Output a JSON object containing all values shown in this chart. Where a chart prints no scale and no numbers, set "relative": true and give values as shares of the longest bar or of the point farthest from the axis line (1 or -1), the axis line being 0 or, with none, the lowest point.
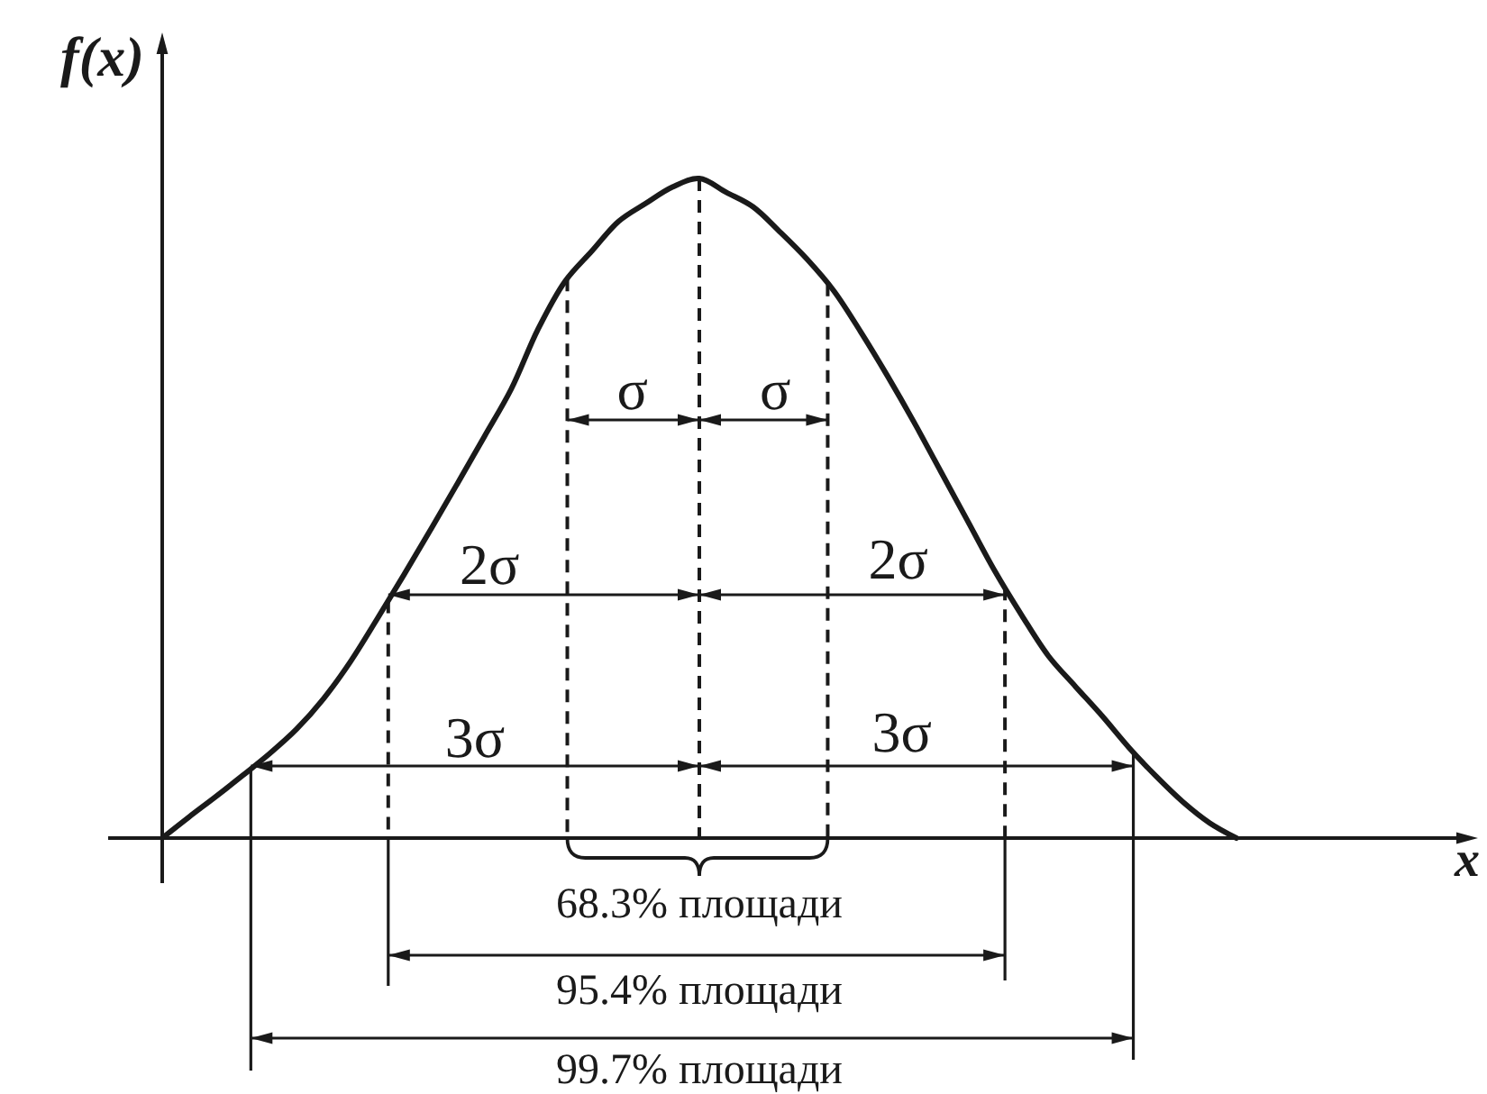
{
  "chart_data": {
    "type": "line",
    "relative": true,
    "xlabel": "x",
    "ylabel": "f(x)",
    "categories": [
      null,
      null,
      null,
      null,
      null,
      null,
      null,
      null,
      null,
      null,
      null,
      null,
      null,
      null,
      null,
      null,
      null,
      null,
      null,
      null,
      null,
      null,
      null,
      null,
      null,
      null,
      null,
      null,
      null,
      null,
      null,
      null,
      null,
      null,
      null,
      null,
      null,
      null,
      null,
      null,
      null
    ],
    "series": [
      {
        "color": "#1a1a1a",
        "values": [
          0,
          0.032,
          0.063,
          0.095,
          0.128,
          0.165,
          0.211,
          0.267,
          0.332,
          0.399,
          0.468,
          0.538,
          0.609,
          0.681,
          0.772,
          0.844,
          0.89,
          0.935,
          0.962,
          0.987,
          1,
          0.979,
          0.957,
          0.919,
          0.878,
          0.83,
          0.768,
          0.701,
          0.63,
          0.555,
          0.48,
          0.405,
          0.338,
          0.276,
          0.23,
          0.185,
          0.137,
          0.094,
          0.055,
          0.023,
          0
        ]
      }
    ],
    "annotations": [
      "σ",
      "σ",
      "2σ",
      "2σ",
      "3σ",
      "3σ",
      "68.3% площади",
      "95.4% площади",
      "99.7% площади"
    ]
  }
}
